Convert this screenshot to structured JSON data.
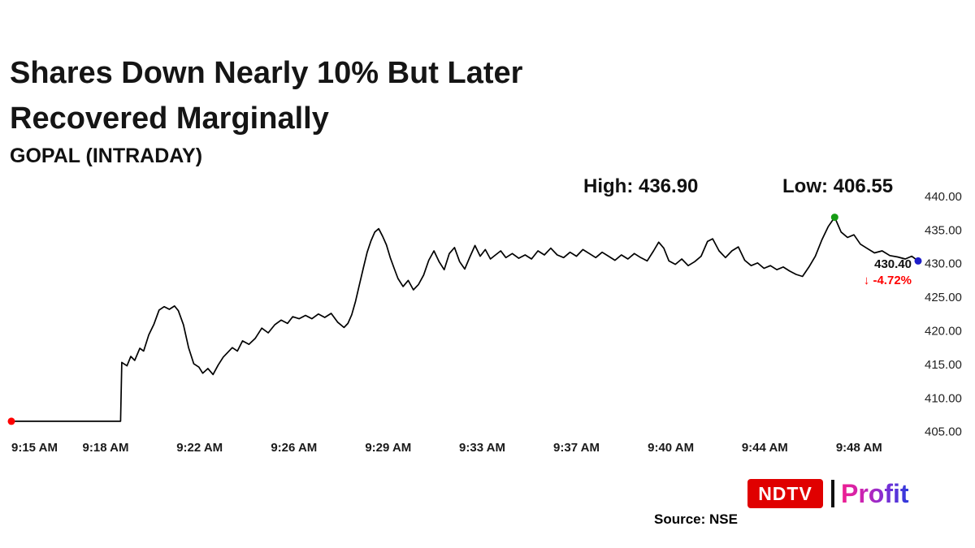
{
  "page": {
    "title_line1": "Shares Down Nearly 10% But Later",
    "title_line2": "Recovered Marginally",
    "subtitle": "GOPAL (INTRADAY)"
  },
  "annotations": {
    "high": "High: 436.90",
    "low": "Low: 406.55"
  },
  "last_price_label": {
    "price": "430.40",
    "arrow": "↓",
    "change": "-4.72%",
    "change_color": "#ff0000"
  },
  "footer": {
    "ndtv": "NDTV",
    "brand_red": "#e00000",
    "profit": "Profit",
    "profit_gradient": [
      "#ef1f90",
      "#c924b4",
      "#7a2fd6",
      "#2b3bdc"
    ],
    "source": "Source: NSE"
  },
  "chart_data": {
    "type": "line",
    "title": "GOPAL (INTRADAY)",
    "xlabel": "",
    "ylabel": "",
    "x_unit": "minutes after 9:15 AM",
    "high": 436.9,
    "low": 406.55,
    "open": 406.55,
    "last": 430.4,
    "change_pct": -4.72,
    "grid": false,
    "legend": "none",
    "line_color": "#000000",
    "xlim": [
      0,
      35.3
    ],
    "ylim": [
      404.6,
      440.6
    ],
    "x_tick_minutes": [
      0,
      3.67,
      7.33,
      11,
      14.67,
      18.33,
      22,
      25.67,
      29.33,
      33
    ],
    "x_tick_labels": [
      "9:15 AM",
      "9:18 AM",
      "9:22 AM",
      "9:26 AM",
      "9:29 AM",
      "9:33 AM",
      "9:37 AM",
      "9:40 AM",
      "9:44 AM",
      "9:48 AM"
    ],
    "y_ticks": [
      440,
      435,
      430,
      425,
      420,
      415,
      410,
      405
    ],
    "y_tick_labels": [
      "440.00",
      "435.00",
      "430.00",
      "425.00",
      "420.00",
      "415.00",
      "410.00",
      "405.00"
    ],
    "markers": [
      {
        "name": "open-marker",
        "minute": 0,
        "price": 406.55,
        "color": "#ff0000"
      },
      {
        "name": "high-marker",
        "minute": 32.05,
        "price": 436.9,
        "color": "#169c14"
      },
      {
        "name": "last-marker",
        "minute": 35.3,
        "price": 430.4,
        "color": "#1d1dc8"
      }
    ],
    "points": [
      [
        0,
        406.55
      ],
      [
        3.0,
        406.55
      ],
      [
        4.25,
        406.55
      ],
      [
        4.3,
        415.3
      ],
      [
        4.5,
        414.8
      ],
      [
        4.65,
        416.2
      ],
      [
        4.8,
        415.6
      ],
      [
        5.0,
        417.4
      ],
      [
        5.15,
        417.0
      ],
      [
        5.35,
        419.4
      ],
      [
        5.55,
        421.0
      ],
      [
        5.75,
        423.1
      ],
      [
        5.95,
        423.6
      ],
      [
        6.15,
        423.2
      ],
      [
        6.35,
        423.7
      ],
      [
        6.5,
        423.0
      ],
      [
        6.7,
        420.9
      ],
      [
        6.9,
        417.5
      ],
      [
        7.1,
        415.1
      ],
      [
        7.3,
        414.6
      ],
      [
        7.45,
        413.7
      ],
      [
        7.65,
        414.4
      ],
      [
        7.85,
        413.5
      ],
      [
        8.05,
        414.9
      ],
      [
        8.25,
        416.1
      ],
      [
        8.4,
        416.7
      ],
      [
        8.6,
        417.5
      ],
      [
        8.8,
        417.0
      ],
      [
        9.0,
        418.5
      ],
      [
        9.25,
        418.0
      ],
      [
        9.5,
        418.9
      ],
      [
        9.75,
        420.4
      ],
      [
        10.0,
        419.7
      ],
      [
        10.25,
        420.9
      ],
      [
        10.5,
        421.6
      ],
      [
        10.75,
        421.1
      ],
      [
        10.95,
        422.1
      ],
      [
        11.2,
        421.8
      ],
      [
        11.45,
        422.3
      ],
      [
        11.7,
        421.8
      ],
      [
        11.95,
        422.5
      ],
      [
        12.2,
        422.0
      ],
      [
        12.45,
        422.6
      ],
      [
        12.7,
        421.3
      ],
      [
        12.95,
        420.5
      ],
      [
        13.1,
        421.1
      ],
      [
        13.25,
        422.4
      ],
      [
        13.4,
        424.4
      ],
      [
        13.55,
        426.9
      ],
      [
        13.7,
        429.3
      ],
      [
        13.85,
        431.7
      ],
      [
        14.0,
        433.4
      ],
      [
        14.15,
        434.7
      ],
      [
        14.3,
        435.2
      ],
      [
        14.45,
        434.1
      ],
      [
        14.6,
        432.8
      ],
      [
        14.75,
        430.9
      ],
      [
        14.9,
        429.3
      ],
      [
        15.05,
        427.8
      ],
      [
        15.25,
        426.6
      ],
      [
        15.45,
        427.5
      ],
      [
        15.65,
        426.1
      ],
      [
        15.85,
        426.9
      ],
      [
        16.05,
        428.3
      ],
      [
        16.25,
        430.5
      ],
      [
        16.45,
        431.9
      ],
      [
        16.65,
        430.3
      ],
      [
        16.85,
        429.1
      ],
      [
        17.05,
        431.5
      ],
      [
        17.25,
        432.4
      ],
      [
        17.45,
        430.3
      ],
      [
        17.65,
        429.2
      ],
      [
        17.85,
        431.0
      ],
      [
        18.05,
        432.7
      ],
      [
        18.25,
        431.1
      ],
      [
        18.45,
        432.1
      ],
      [
        18.65,
        430.7
      ],
      [
        18.85,
        431.3
      ],
      [
        19.05,
        431.9
      ],
      [
        19.25,
        430.9
      ],
      [
        19.5,
        431.5
      ],
      [
        19.75,
        430.8
      ],
      [
        20.0,
        431.3
      ],
      [
        20.25,
        430.7
      ],
      [
        20.5,
        431.9
      ],
      [
        20.75,
        431.3
      ],
      [
        21.0,
        432.3
      ],
      [
        21.25,
        431.3
      ],
      [
        21.5,
        430.9
      ],
      [
        21.75,
        431.7
      ],
      [
        22.0,
        431.1
      ],
      [
        22.25,
        432.1
      ],
      [
        22.5,
        431.5
      ],
      [
        22.75,
        430.9
      ],
      [
        23.0,
        431.7
      ],
      [
        23.25,
        431.1
      ],
      [
        23.5,
        430.5
      ],
      [
        23.75,
        431.3
      ],
      [
        24.0,
        430.7
      ],
      [
        24.25,
        431.5
      ],
      [
        24.5,
        430.9
      ],
      [
        24.75,
        430.4
      ],
      [
        25.0,
        431.9
      ],
      [
        25.2,
        433.2
      ],
      [
        25.4,
        432.3
      ],
      [
        25.6,
        430.4
      ],
      [
        25.85,
        429.9
      ],
      [
        26.1,
        430.7
      ],
      [
        26.35,
        429.7
      ],
      [
        26.6,
        430.3
      ],
      [
        26.85,
        431.1
      ],
      [
        27.1,
        433.3
      ],
      [
        27.3,
        433.7
      ],
      [
        27.55,
        431.9
      ],
      [
        27.8,
        430.9
      ],
      [
        28.05,
        431.9
      ],
      [
        28.3,
        432.5
      ],
      [
        28.55,
        430.5
      ],
      [
        28.8,
        429.7
      ],
      [
        29.05,
        430.1
      ],
      [
        29.3,
        429.3
      ],
      [
        29.55,
        429.7
      ],
      [
        29.8,
        429.1
      ],
      [
        30.05,
        429.5
      ],
      [
        30.3,
        428.9
      ],
      [
        30.55,
        428.4
      ],
      [
        30.8,
        428.1
      ],
      [
        31.05,
        429.5
      ],
      [
        31.3,
        431.1
      ],
      [
        31.55,
        433.5
      ],
      [
        31.8,
        435.5
      ],
      [
        32.05,
        436.9
      ],
      [
        32.3,
        434.7
      ],
      [
        32.55,
        433.9
      ],
      [
        32.8,
        434.3
      ],
      [
        33.05,
        432.9
      ],
      [
        33.3,
        432.3
      ],
      [
        33.6,
        431.6
      ],
      [
        33.9,
        431.9
      ],
      [
        34.2,
        431.2
      ],
      [
        34.5,
        431.0
      ],
      [
        34.8,
        430.7
      ],
      [
        35.05,
        431.1
      ],
      [
        35.3,
        430.4
      ]
    ]
  }
}
